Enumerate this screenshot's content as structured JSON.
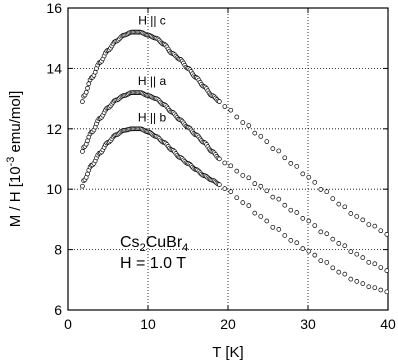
{
  "chart_data": {
    "type": "scatter",
    "xlabel": "T [K]",
    "ylabel_parts": {
      "main": "M / H [10",
      "exp": "-3",
      "unit": " emu/mol]"
    },
    "xlim": [
      0,
      40
    ],
    "ylim": [
      6,
      16
    ],
    "xticks": [
      0,
      10,
      20,
      30,
      40
    ],
    "yticks": [
      6,
      8,
      10,
      12,
      14,
      16
    ],
    "grid": "dotted",
    "marker": "open-circle",
    "annotation": {
      "line1_parts": {
        "a": "Cs",
        "s1": "2",
        "b": "CuBr",
        "s2": "4"
      },
      "line2": "H = 1.0 T"
    },
    "series": [
      {
        "name": "H || c",
        "x": [
          1.8,
          2,
          3,
          4,
          5,
          6,
          7,
          8,
          9,
          10,
          11,
          12,
          13,
          14,
          15,
          16,
          17,
          18,
          19,
          20,
          22,
          24,
          26,
          28,
          30,
          32,
          34,
          36,
          38,
          40
        ],
        "y": [
          12.9,
          13.1,
          13.7,
          14.2,
          14.6,
          14.9,
          15.1,
          15.2,
          15.2,
          15.1,
          15.0,
          14.8,
          14.5,
          14.3,
          14.0,
          13.7,
          13.4,
          13.1,
          12.9,
          12.65,
          12.2,
          11.75,
          11.3,
          10.85,
          10.4,
          9.95,
          9.5,
          9.1,
          8.8,
          8.5
        ]
      },
      {
        "name": "H || a",
        "x": [
          1.8,
          2,
          3,
          4,
          5,
          6,
          7,
          8,
          9,
          10,
          11,
          12,
          13,
          14,
          15,
          16,
          17,
          18,
          19,
          20,
          22,
          24,
          26,
          28,
          30,
          32,
          34,
          36,
          38,
          40
        ],
        "y": [
          11.25,
          11.4,
          11.9,
          12.35,
          12.7,
          12.95,
          13.1,
          13.2,
          13.2,
          13.1,
          13.0,
          12.8,
          12.55,
          12.3,
          12.05,
          11.8,
          11.55,
          11.25,
          11.0,
          10.8,
          10.45,
          10.1,
          9.7,
          9.3,
          8.95,
          8.55,
          8.2,
          7.85,
          7.55,
          7.3
        ]
      },
      {
        "name": "H || b",
        "x": [
          1.8,
          2,
          3,
          4,
          5,
          6,
          7,
          8,
          9,
          10,
          11,
          12,
          13,
          14,
          15,
          16,
          17,
          18,
          19,
          20,
          22,
          24,
          26,
          28,
          30,
          32,
          34,
          36,
          38,
          40
        ],
        "y": [
          10.1,
          10.3,
          10.8,
          11.2,
          11.55,
          11.8,
          11.95,
          12.0,
          12.0,
          11.9,
          11.75,
          11.55,
          11.3,
          11.05,
          10.85,
          10.65,
          10.45,
          10.3,
          10.15,
          9.95,
          9.55,
          9.1,
          8.7,
          8.3,
          7.95,
          7.6,
          7.25,
          6.95,
          6.75,
          6.6
        ]
      }
    ]
  }
}
